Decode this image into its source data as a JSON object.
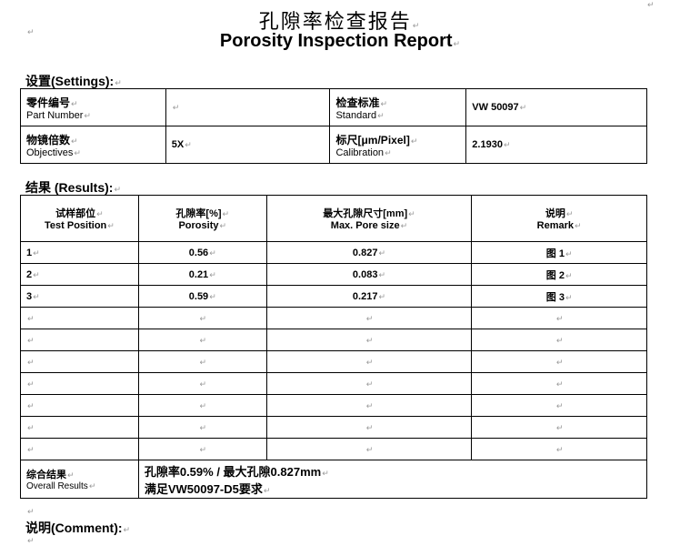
{
  "title": {
    "cn": "孔隙率检查报告",
    "en": "Porosity Inspection Report"
  },
  "settings": {
    "heading": "设置(Settings):",
    "part_number": {
      "cn": "零件编号",
      "en": "Part Number",
      "value": ""
    },
    "standard": {
      "cn": "检查标准",
      "en": "Standard",
      "value": "VW 50097"
    },
    "objectives": {
      "cn": "物镜倍数",
      "en": "Objectives",
      "value": "5X"
    },
    "calibration": {
      "cn": "标尺[μm/Pixel]",
      "en": "Calibration",
      "value": "2.1930"
    }
  },
  "results": {
    "heading": "结果 (Results):",
    "columns": [
      {
        "cn": "试样部位",
        "en": "Test Position"
      },
      {
        "cn": "孔隙率[%]",
        "en": "Porosity"
      },
      {
        "cn": "最大孔隙尺寸[mm]",
        "en": "Max. Pore size"
      },
      {
        "cn": "说明",
        "en": "Remark"
      }
    ],
    "rows": [
      [
        "1",
        "0.56",
        "0.827",
        "图 1"
      ],
      [
        "2",
        "0.21",
        "0.083",
        "图 2"
      ],
      [
        "3",
        "0.59",
        "0.217",
        "图 3"
      ],
      [
        "",
        "",
        "",
        ""
      ],
      [
        "",
        "",
        "",
        ""
      ],
      [
        "",
        "",
        "",
        ""
      ],
      [
        "",
        "",
        "",
        ""
      ],
      [
        "",
        "",
        "",
        ""
      ],
      [
        "",
        "",
        "",
        ""
      ],
      [
        "",
        "",
        "",
        ""
      ]
    ],
    "overall": {
      "cn": "综合结果",
      "en": "Overall Results",
      "line1": "孔隙率0.59%  / 最大孔隙0.827mm",
      "line2": "满足VW50097-D5要求"
    }
  },
  "comment": {
    "heading": "说明(Comment):"
  }
}
